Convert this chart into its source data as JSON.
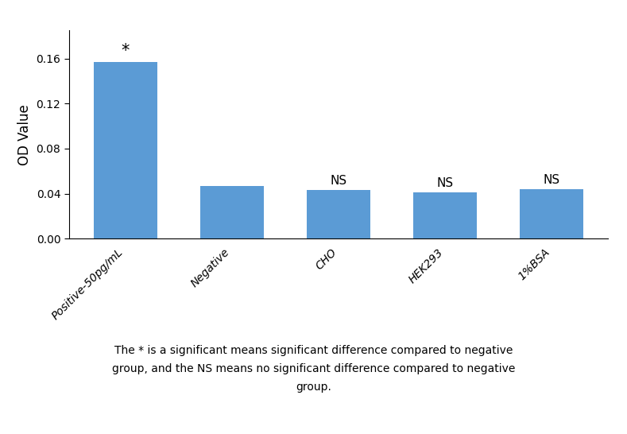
{
  "categories": [
    "Positive-50pg/mL",
    "Negative",
    "CHO",
    "HEK293",
    "1%BSA"
  ],
  "values": [
    0.157,
    0.047,
    0.043,
    0.041,
    0.044
  ],
  "bar_color": "#5B9BD5",
  "ylabel": "OD Value",
  "ylim": [
    0,
    0.185
  ],
  "yticks": [
    0.0,
    0.04,
    0.08,
    0.12,
    0.16
  ],
  "annotations": [
    "*",
    "",
    "NS",
    "NS",
    "NS"
  ],
  "footnote": "The * is a significant means significant difference compared to negative\ngroup, and the NS means no significant difference compared to negative\ngroup.",
  "background_color": "#FFFFFF",
  "bar_width": 0.6,
  "annotation_fontsize": 11,
  "star_fontsize": 15,
  "ylabel_fontsize": 12,
  "tick_fontsize": 10,
  "footnote_fontsize": 10
}
